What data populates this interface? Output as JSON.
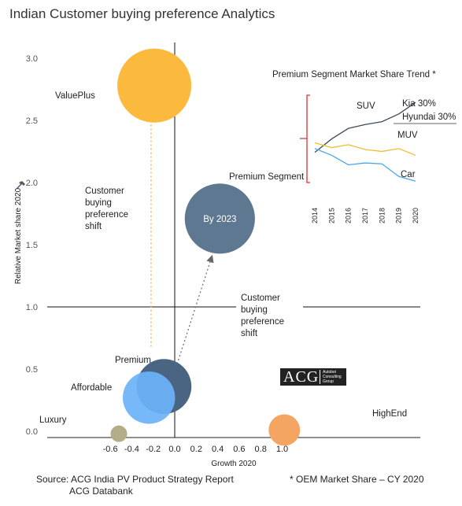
{
  "title": "Indian Customer buying preference Analytics",
  "chart_data": [
    {
      "type": "scatter",
      "subtype": "bubble",
      "xlabel": "Growth 2020",
      "ylabel": "Relative Market share 2020",
      "xlim": [
        -0.65,
        1.15
      ],
      "ylim": [
        -0.02,
        3.2
      ],
      "xticks": [
        "-0.6",
        "-0.4",
        "-0.2",
        "0.0",
        "0.2",
        "0.4",
        "0.6",
        "0.8",
        "1.0"
      ],
      "xtick_values": [
        -0.6,
        -0.4,
        -0.2,
        0.0,
        0.2,
        0.4,
        0.6,
        0.8,
        1.0
      ],
      "yticks": [
        "0.0",
        "0.5",
        "1.0",
        "1.5",
        "2.0",
        "2.5",
        "3.0"
      ],
      "ytick_values": [
        0.0,
        0.5,
        1.0,
        1.5,
        2.0,
        2.5,
        3.0
      ],
      "grid": false,
      "points": [
        {
          "name": "ValuePlus",
          "x": -0.19,
          "y": 2.78,
          "size": 1.0,
          "color": "#FBBA3D"
        },
        {
          "name": "Premium",
          "x": -0.1,
          "y": 0.36,
          "size": 0.55,
          "color": "#4A6582"
        },
        {
          "name": "Affordable",
          "x": -0.24,
          "y": 0.27,
          "size": 0.5,
          "color": "#6BB2F8"
        },
        {
          "name": "Luxury",
          "x": -0.52,
          "y": -0.02,
          "size": 0.05,
          "color": "#B4AE88"
        },
        {
          "name": "HighEnd",
          "x": 1.02,
          "y": 0.01,
          "size": 0.18,
          "color": "#F3A561"
        },
        {
          "name": "Premium Segment",
          "label": "By 2023",
          "x": 0.42,
          "y": 1.71,
          "size": 0.9,
          "color": "#5F7892"
        }
      ],
      "annotations": [
        {
          "text": "Customer buying preference shift",
          "lines": [
            "Customer",
            "buying",
            "preference",
            "shift"
          ],
          "from": [
            -0.22,
            0.68
          ],
          "to": [
            -0.22,
            2.58
          ],
          "style": "dotted",
          "color": "#F3A53A"
        },
        {
          "text": "Customer buying preference shift",
          "lines": [
            "Customer",
            "buying",
            "preference",
            "shift"
          ],
          "from": [
            0.0,
            0.48
          ],
          "to": [
            0.34,
            1.39
          ],
          "style": "dotted",
          "color": "#666666"
        }
      ]
    },
    {
      "type": "line",
      "title": "Premium Segment Market Share Trend *",
      "categories": [
        "2014",
        "2015",
        "2016",
        "2017",
        "2018",
        "2019",
        "2020"
      ],
      "series": [
        {
          "name": "SUV",
          "values": [
            18,
            32,
            43,
            47,
            50,
            58,
            70
          ],
          "color": "#404A5C"
        },
        {
          "name": "MUV",
          "values": [
            28,
            23,
            26,
            21,
            19,
            22,
            15
          ],
          "color": "#F2BD2F"
        },
        {
          "name": "Car",
          "values": [
            22,
            15,
            5,
            7,
            6,
            -7,
            -12
          ],
          "color": "#49A7EA"
        }
      ],
      "ylim": [
        -20,
        80
      ],
      "annotations": [
        "Kia 30%",
        "Hyundai 30%"
      ]
    }
  ],
  "footer": {
    "source_line1": "Source: ACG India PV Product Strategy Report",
    "source_line2": "ACG Databank",
    "oem_note": "* OEM Market Share – CY 2020"
  },
  "logo": {
    "text": "ACG",
    "subtext": [
      "Autobei",
      "Consulting",
      "Group"
    ]
  }
}
